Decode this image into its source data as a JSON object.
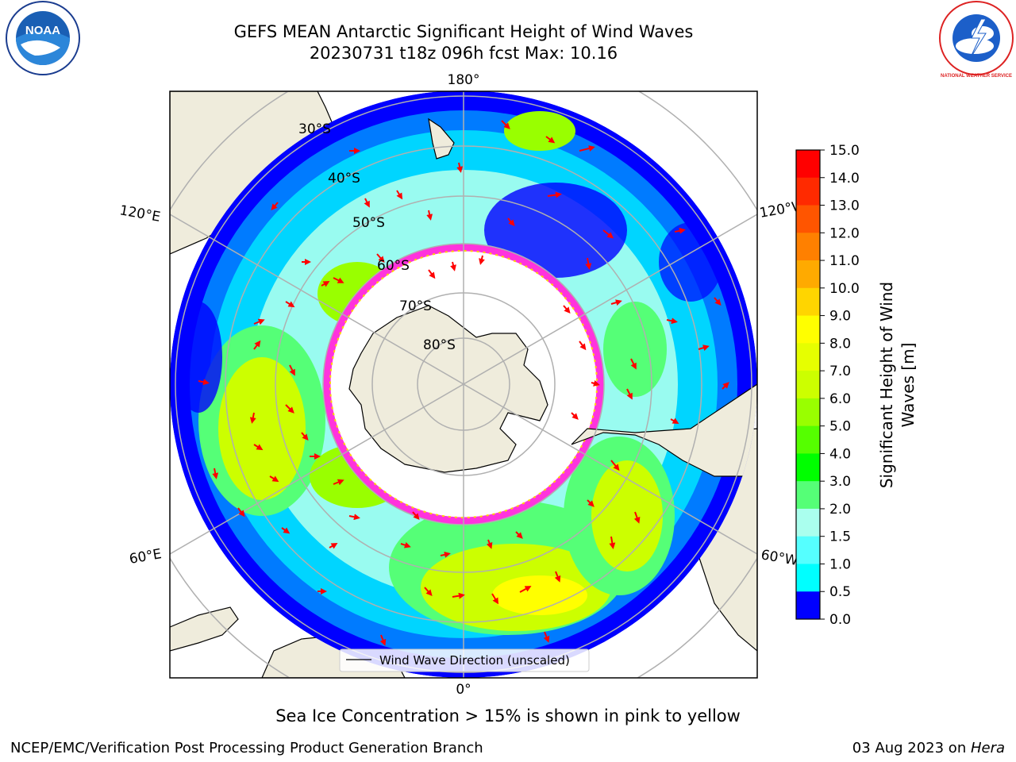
{
  "title_line1": "GEFS MEAN Antarctic Significant Height of Wind Waves",
  "title_line2": "20230731 t18z 096h fcst   Max: 10.16",
  "caption": "Sea Ice Concentration > 15% is shown in pink to yellow",
  "footer_left": "NCEP/EMC/Verification Post Processing Product Generation Branch",
  "footer_date": "03 Aug 2023 on ",
  "footer_machine": "Hera",
  "logos": {
    "noaa_text": "NOAA",
    "nws_text": "NATIONAL WEATHER SERVICE"
  },
  "map": {
    "longitude_labels": {
      "top": "180°",
      "bottom": "0°",
      "upper_left": "120°E",
      "upper_right": "120°W",
      "lower_left": "60°E",
      "lower_right": "60°W"
    },
    "latitude_labels": [
      "30°S",
      "40°S",
      "50°S",
      "60°S",
      "70°S",
      "80°S"
    ],
    "legend_label": "Wind Wave Direction (unscaled)"
  },
  "colorbar": {
    "label_line1": "Significant Height of Wind",
    "label_line2": "Waves [m]",
    "ticks": [
      "15.0",
      "14.0",
      "13.0",
      "12.0",
      "11.0",
      "10.0",
      "9.0",
      "8.0",
      "7.0",
      "6.0",
      "5.0",
      "4.0",
      "3.0",
      "2.0",
      "1.5",
      "1.0",
      "0.5",
      "0.0"
    ],
    "colors_top_to_bottom": [
      "#ff0000",
      "#ff2a00",
      "#ff5500",
      "#ff8000",
      "#ffaa00",
      "#ffd500",
      "#ffff00",
      "#e6ff00",
      "#ccff00",
      "#99ff00",
      "#55ff00",
      "#00ff00",
      "#55ff77",
      "#aaffee",
      "#55ffff",
      "#00ffff",
      "#0088ff",
      "#0000ff"
    ]
  },
  "colors": {
    "land": "#efecdc",
    "ocean_base": "#0000ff",
    "ice_edge": "#ff33dd",
    "arrow": "#ff0000"
  }
}
